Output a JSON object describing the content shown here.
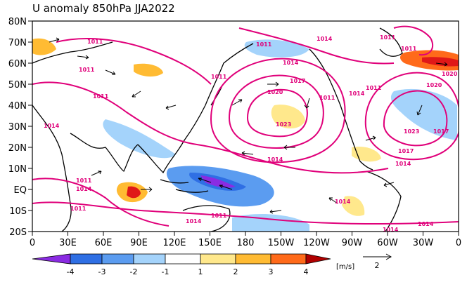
{
  "title": "U anomaly 850hPa JJA2022",
  "lat_labels": [
    "80N",
    "70N",
    "60N",
    "50N",
    "40N",
    "30N",
    "20N",
    "10N",
    "EQ",
    "10S",
    "20S"
  ],
  "lon_labels": [
    "0",
    "30E",
    "60E",
    "90E",
    "120E",
    "150E",
    "180",
    "150W",
    "120W",
    "90W",
    "60W",
    "30W",
    "0"
  ],
  "colorbar": {
    "ticks": [
      "-4",
      "-3",
      "-2",
      "-1",
      "1",
      "2",
      "3",
      "4"
    ],
    "unit": "[m/s]",
    "colors": [
      "#8a2be2",
      "#2f6fe4",
      "#5b9cf0",
      "#a4d3fb",
      "#ffffff",
      "#ffe88c",
      "#ffbb33",
      "#ff6a1a",
      "#e01818",
      "#b00000"
    ]
  },
  "reference_vector": {
    "label": "2"
  },
  "contour_labels": [
    "1011",
    "1011",
    "1011",
    "1014",
    "1014",
    "1017",
    "1011",
    "1014",
    "1011",
    "1020",
    "1020",
    "1023",
    "1011",
    "1014",
    "1011",
    "1011",
    "1014",
    "1014",
    "1011",
    "1020",
    "1017",
    "1014",
    "1023",
    "1017",
    "1011",
    "1014",
    "1011",
    "1011",
    "1014",
    "1014",
    "1014"
  ],
  "colors": {
    "contour": "#e0007a",
    "coast": "#000000"
  }
}
